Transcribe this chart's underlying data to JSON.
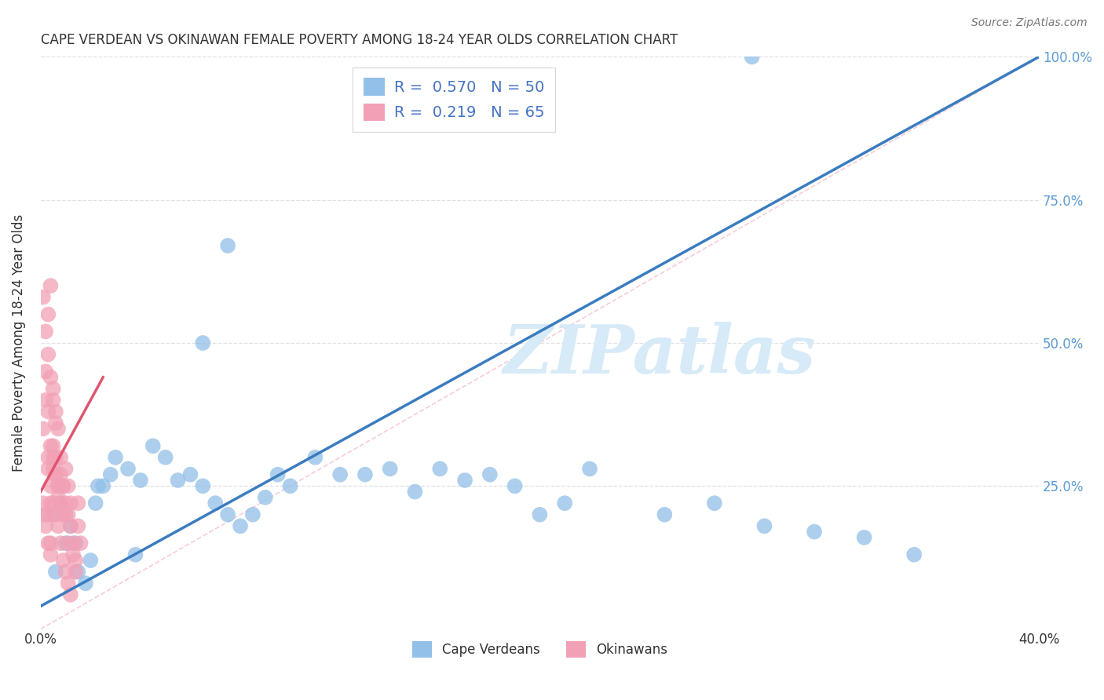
{
  "title": "CAPE VERDEAN VS OKINAWAN FEMALE POVERTY AMONG 18-24 YEAR OLDS CORRELATION CHART",
  "source": "Source: ZipAtlas.com",
  "ylabel": "Female Poverty Among 18-24 Year Olds",
  "xlim": [
    0.0,
    0.4
  ],
  "ylim": [
    0.0,
    1.0
  ],
  "xtick_positions": [
    0.0,
    0.05,
    0.1,
    0.15,
    0.2,
    0.25,
    0.3,
    0.35,
    0.4
  ],
  "xticklabels": [
    "0.0%",
    "",
    "",
    "",
    "",
    "",
    "",
    "",
    "40.0%"
  ],
  "ytick_positions": [
    0.0,
    0.25,
    0.5,
    0.75,
    1.0
  ],
  "yticklabels_right": [
    "",
    "25.0%",
    "50.0%",
    "75.0%",
    "100.0%"
  ],
  "blue_R": 0.57,
  "blue_N": 50,
  "pink_R": 0.219,
  "pink_N": 65,
  "blue_color": "#92C0E8",
  "pink_color": "#F2A0B5",
  "blue_line_color": "#3A7CC0",
  "pink_line_color": "#E05570",
  "ref_line_color": "#F2B8C6",
  "legend_label_blue": "Cape Verdeans",
  "legend_label_pink": "Okinawans",
  "blue_scatter_x": [
    0.005,
    0.008,
    0.01,
    0.012,
    0.015,
    0.018,
    0.02,
    0.022,
    0.025,
    0.028,
    0.03,
    0.035,
    0.04,
    0.045,
    0.05,
    0.055,
    0.06,
    0.065,
    0.07,
    0.075,
    0.08,
    0.085,
    0.09,
    0.095,
    0.1,
    0.11,
    0.12,
    0.13,
    0.14,
    0.15,
    0.16,
    0.17,
    0.18,
    0.19,
    0.2,
    0.21,
    0.22,
    0.25,
    0.27,
    0.29,
    0.31,
    0.33,
    0.35,
    0.006,
    0.014,
    0.023,
    0.038,
    0.065,
    0.075,
    0.285
  ],
  "blue_scatter_y": [
    0.2,
    0.22,
    0.15,
    0.18,
    0.1,
    0.08,
    0.12,
    0.22,
    0.25,
    0.27,
    0.3,
    0.28,
    0.26,
    0.32,
    0.3,
    0.26,
    0.27,
    0.25,
    0.22,
    0.2,
    0.18,
    0.2,
    0.23,
    0.27,
    0.25,
    0.3,
    0.27,
    0.27,
    0.28,
    0.24,
    0.28,
    0.26,
    0.27,
    0.25,
    0.2,
    0.22,
    0.28,
    0.2,
    0.22,
    0.18,
    0.17,
    0.16,
    0.13,
    0.1,
    0.15,
    0.25,
    0.13,
    0.5,
    0.67,
    1.0
  ],
  "pink_scatter_x": [
    0.001,
    0.002,
    0.002,
    0.003,
    0.003,
    0.004,
    0.004,
    0.005,
    0.005,
    0.006,
    0.006,
    0.007,
    0.007,
    0.008,
    0.008,
    0.009,
    0.009,
    0.01,
    0.01,
    0.011,
    0.011,
    0.012,
    0.012,
    0.013,
    0.013,
    0.014,
    0.014,
    0.015,
    0.015,
    0.016,
    0.003,
    0.004,
    0.005,
    0.006,
    0.007,
    0.008,
    0.009,
    0.01,
    0.011,
    0.012,
    0.002,
    0.003,
    0.004,
    0.005,
    0.006,
    0.007,
    0.008,
    0.009,
    0.01,
    0.011,
    0.001,
    0.002,
    0.003,
    0.004,
    0.005,
    0.006,
    0.007,
    0.001,
    0.002,
    0.003,
    0.004,
    0.005,
    0.006,
    0.003,
    0.004
  ],
  "pink_scatter_y": [
    0.22,
    0.2,
    0.18,
    0.3,
    0.28,
    0.25,
    0.22,
    0.32,
    0.28,
    0.3,
    0.27,
    0.25,
    0.23,
    0.27,
    0.22,
    0.25,
    0.2,
    0.28,
    0.22,
    0.25,
    0.2,
    0.22,
    0.18,
    0.15,
    0.13,
    0.12,
    0.1,
    0.22,
    0.18,
    0.15,
    0.15,
    0.13,
    0.22,
    0.2,
    0.18,
    0.15,
    0.12,
    0.1,
    0.08,
    0.06,
    0.45,
    0.55,
    0.6,
    0.42,
    0.38,
    0.35,
    0.3,
    0.25,
    0.2,
    0.15,
    0.35,
    0.4,
    0.38,
    0.32,
    0.3,
    0.27,
    0.25,
    0.58,
    0.52,
    0.48,
    0.44,
    0.4,
    0.36,
    0.2,
    0.15
  ],
  "blue_line": [
    [
      0.0,
      0.04
    ],
    [
      0.4,
      1.0
    ]
  ],
  "pink_line": [
    [
      0.0,
      0.24
    ],
    [
      0.025,
      0.44
    ]
  ],
  "ref_line": [
    [
      0.0,
      0.0
    ],
    [
      0.4,
      1.0
    ]
  ],
  "watermark": "ZIPatlas",
  "watermark_color": "#D6EAF8",
  "background_color": "#FFFFFF",
  "tick_color_right": "#5B9BD5",
  "grid_color": "#E0E0E0",
  "title_fontsize": 12,
  "axis_label_fontsize": 12,
  "tick_fontsize": 12,
  "legend_fontsize": 14
}
